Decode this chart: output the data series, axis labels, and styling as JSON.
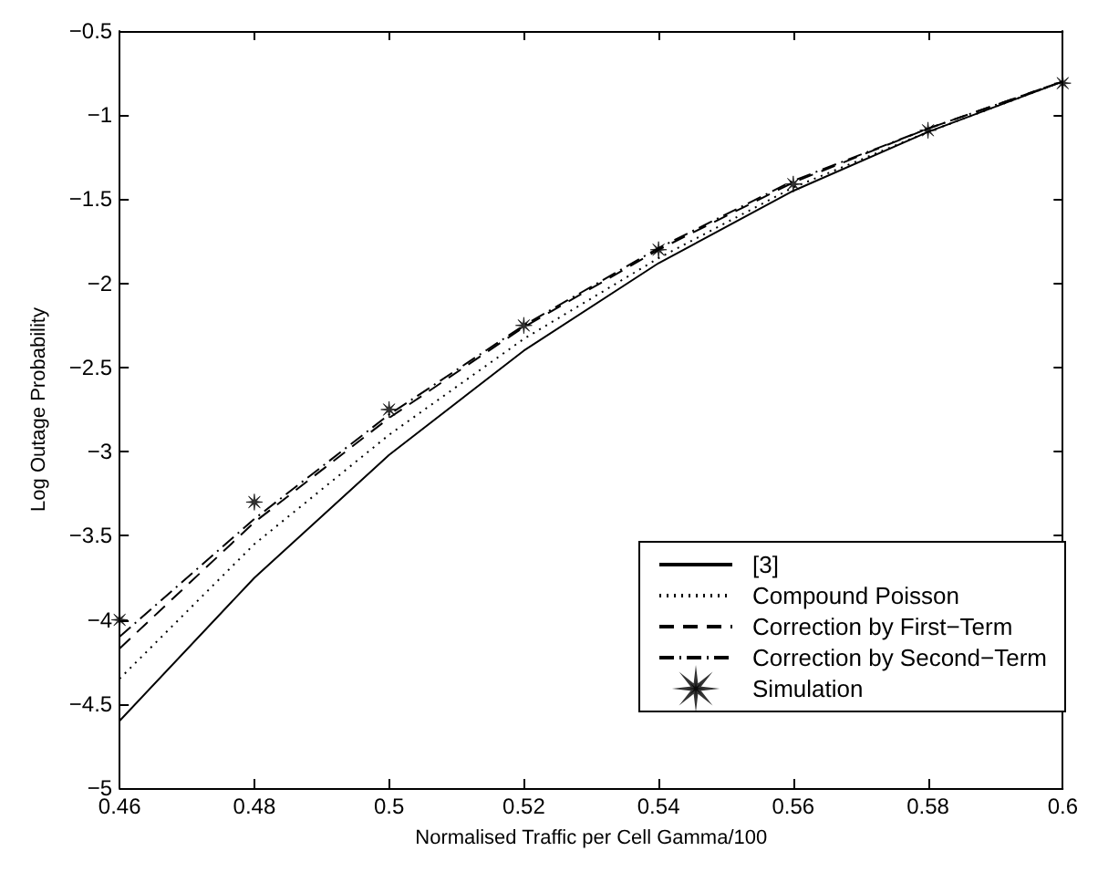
{
  "chart_data": {
    "type": "line",
    "xlabel": "Normalised Traffic per Cell Gamma/100",
    "ylabel": "Log Outage Probability",
    "x": [
      0.46,
      0.48,
      0.5,
      0.52,
      0.54,
      0.56,
      0.58,
      0.6
    ],
    "series": [
      {
        "name": "[3]",
        "color": "#000000",
        "line_style": "solid",
        "values": [
          -4.6,
          -3.75,
          -3.02,
          -2.4,
          -1.88,
          -1.45,
          -1.1,
          -0.8
        ]
      },
      {
        "name": "Compound Poisson",
        "color": "#000000",
        "line_style": "dotted",
        "values": [
          -4.35,
          -3.55,
          -2.9,
          -2.33,
          -1.85,
          -1.43,
          -1.1,
          -0.8
        ]
      },
      {
        "name": "Correction by First−Term",
        "color": "#000000",
        "line_style": "dashed",
        "values": [
          -4.17,
          -3.42,
          -2.8,
          -2.26,
          -1.8,
          -1.4,
          -1.08,
          -0.8
        ]
      },
      {
        "name": "Correction by Second−Term",
        "color": "#000000",
        "line_style": "dashdot",
        "values": [
          -4.1,
          -3.4,
          -2.78,
          -2.25,
          -1.79,
          -1.39,
          -1.08,
          -0.8
        ]
      },
      {
        "name": "Simulation",
        "color": "#000000",
        "type": "scatter",
        "marker": "star",
        "values": [
          -4.0,
          -3.3,
          -2.75,
          -2.25,
          -1.8,
          -1.41,
          -1.09,
          -0.81
        ]
      }
    ],
    "xlim": [
      0.46,
      0.6
    ],
    "xticks": [
      0.46,
      0.48,
      0.5,
      0.52,
      0.54,
      0.56,
      0.58,
      0.6
    ],
    "ylim": [
      -5,
      -0.5
    ],
    "yticks": [
      -5,
      -4.5,
      -4,
      -3.5,
      -3,
      -2.5,
      -2,
      -1.5,
      -1,
      -0.5
    ],
    "grid": false,
    "legend": "bottom right",
    "marker": "none"
  }
}
